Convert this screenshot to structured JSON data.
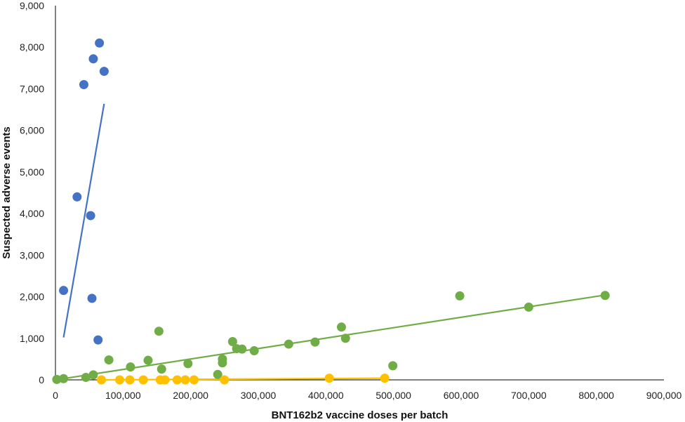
{
  "chart_data": {
    "type": "scatter",
    "xlabel": "BNT162b2 vaccine doses per batch",
    "ylabel": "Suspected adverse events",
    "xlim": [
      0,
      900000
    ],
    "ylim": [
      0,
      9000
    ],
    "x_ticks": [
      0,
      100000,
      200000,
      300000,
      400000,
      500000,
      600000,
      700000,
      800000,
      900000
    ],
    "x_tick_labels": [
      "0",
      "100,000",
      "200,000",
      "300,000",
      "400,000",
      "500,000",
      "600,000",
      "700,000",
      "800,000",
      "900,000"
    ],
    "y_ticks": [
      0,
      1000,
      2000,
      3000,
      4000,
      5000,
      6000,
      7000,
      8000,
      9000
    ],
    "y_tick_labels": [
      "0",
      "1,000",
      "2,000",
      "3,000",
      "4,000",
      "5,000",
      "6,000",
      "7,000",
      "8,000",
      "9,000"
    ],
    "grid": false,
    "legend": "none",
    "series": [
      {
        "color": "#4472C4",
        "points": [
          [
            12000,
            2150
          ],
          [
            32000,
            4400
          ],
          [
            42000,
            7100
          ],
          [
            52000,
            3950
          ],
          [
            54000,
            1960
          ],
          [
            56000,
            7720
          ],
          [
            63000,
            960
          ],
          [
            65000,
            8100
          ],
          [
            72000,
            7420
          ]
        ],
        "trendline": [
          [
            12000,
            1020
          ],
          [
            72000,
            6640
          ]
        ]
      },
      {
        "color": "#70AD47",
        "points": [
          [
            2000,
            10
          ],
          [
            12000,
            30
          ],
          [
            45000,
            60
          ],
          [
            56000,
            120
          ],
          [
            79000,
            480
          ],
          [
            111000,
            310
          ],
          [
            137000,
            470
          ],
          [
            153000,
            1170
          ],
          [
            157000,
            260
          ],
          [
            196000,
            390
          ],
          [
            240000,
            130
          ],
          [
            247000,
            410
          ],
          [
            247000,
            500
          ],
          [
            262000,
            920
          ],
          [
            268000,
            750
          ],
          [
            276000,
            740
          ],
          [
            294000,
            700
          ],
          [
            345000,
            860
          ],
          [
            384000,
            910
          ],
          [
            423000,
            1270
          ],
          [
            429000,
            1000
          ],
          [
            499000,
            340
          ],
          [
            598000,
            2020
          ],
          [
            700000,
            1750
          ],
          [
            813000,
            2030
          ]
        ],
        "trendline": [
          [
            0,
            0
          ],
          [
            813000,
            2040
          ]
        ]
      },
      {
        "color": "#FFC000",
        "points": [
          [
            68000,
            0
          ],
          [
            95000,
            0
          ],
          [
            110000,
            0
          ],
          [
            130000,
            0
          ],
          [
            155000,
            0
          ],
          [
            162000,
            0
          ],
          [
            180000,
            0
          ],
          [
            192000,
            0
          ],
          [
            205000,
            0
          ],
          [
            250000,
            0
          ],
          [
            405000,
            40
          ],
          [
            487000,
            40
          ]
        ],
        "trendline": [
          [
            68000,
            0
          ],
          [
            487000,
            40
          ]
        ]
      }
    ]
  }
}
